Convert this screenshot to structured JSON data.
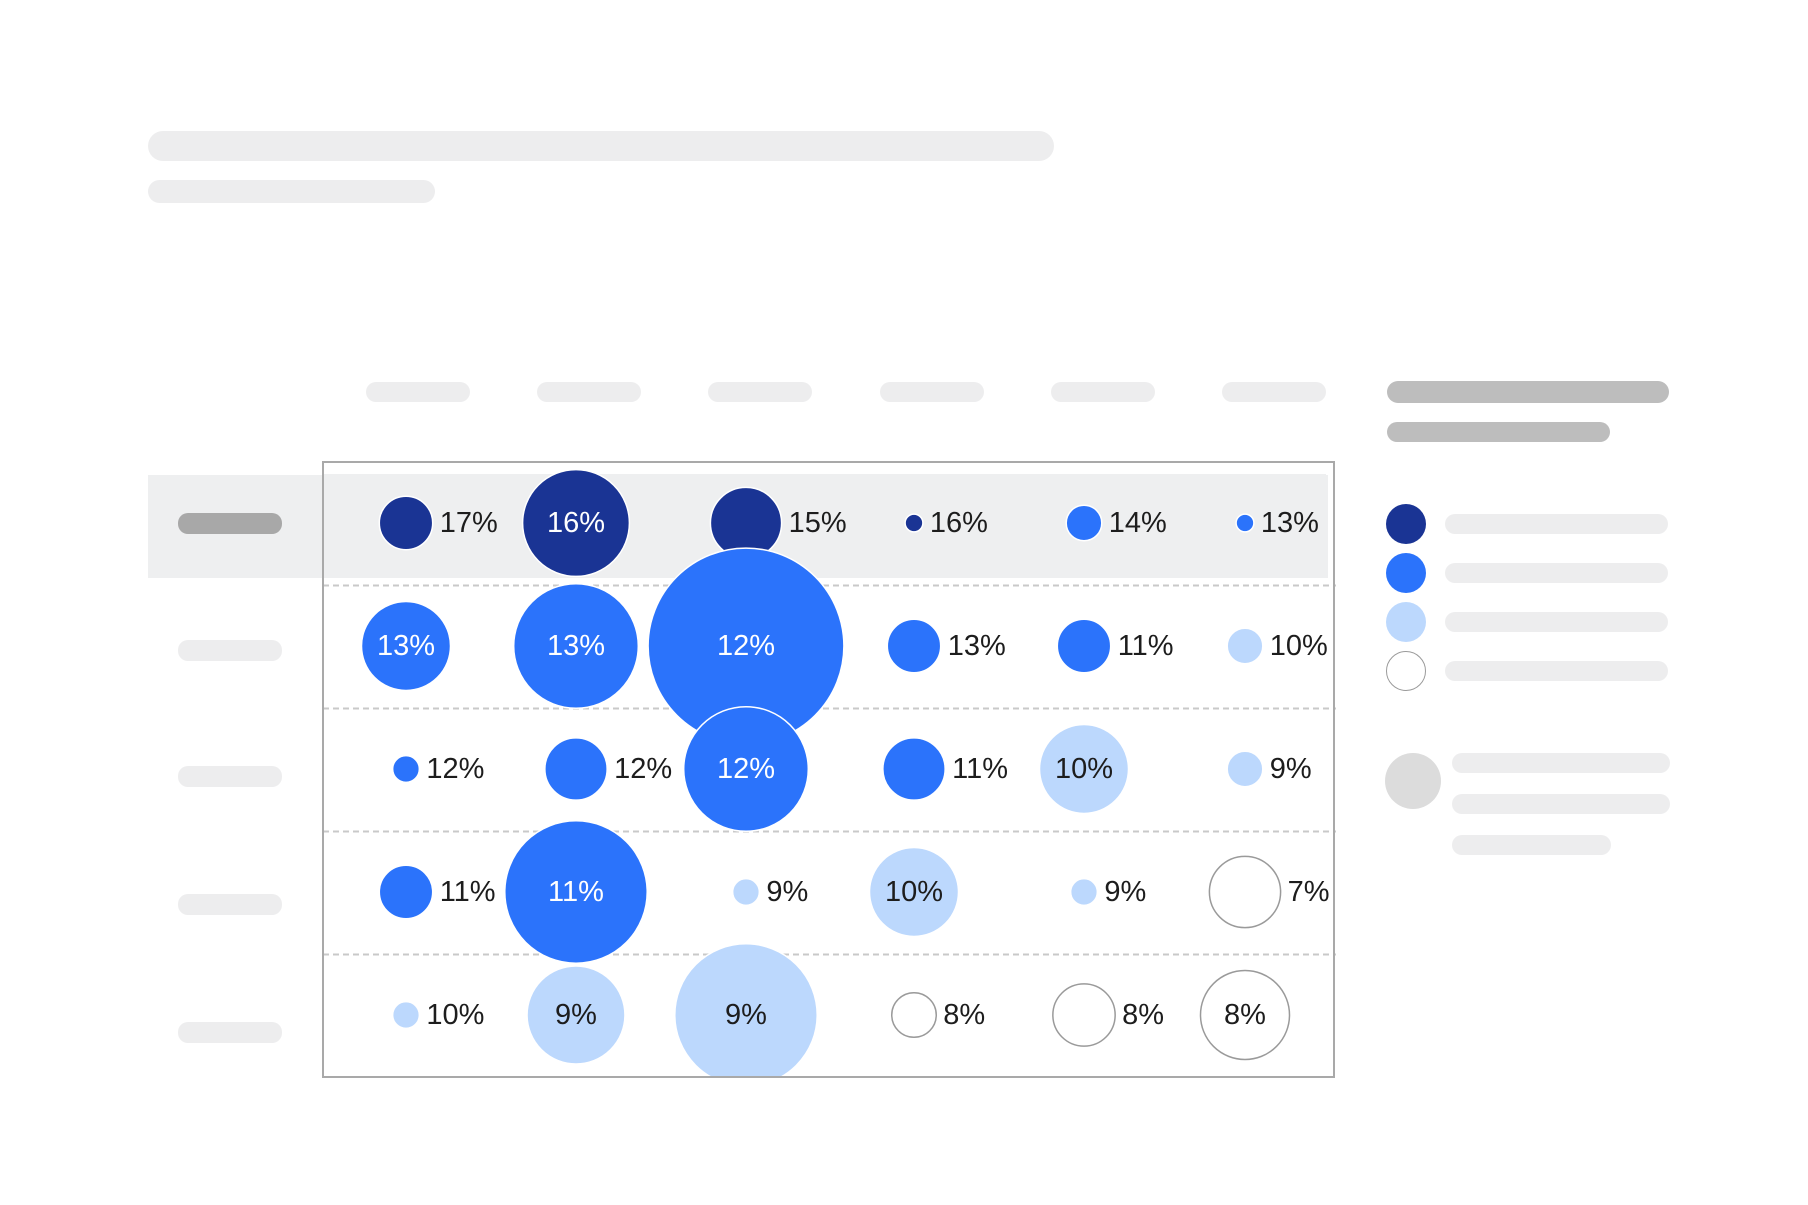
{
  "colors": {
    "dark": "#1a3494",
    "medium": "#2b73fb",
    "light": "#bcd8fd",
    "none": "#ffffff",
    "outline": "#9a9a9a",
    "highlight": "#eeeff0",
    "grid": "#c9c9c9",
    "text_dark": "#1d1d1d",
    "text_light": "#ffffff"
  },
  "chart_data": {
    "type": "bubble-matrix",
    "title": "",
    "xlabel": "",
    "ylabel": "",
    "rows": [
      [
        {
          "label": "17%",
          "size": 3,
          "tone": "dark"
        },
        {
          "label": "16%",
          "size": 6,
          "tone": "dark"
        },
        {
          "label": "15%",
          "size": 4,
          "tone": "dark"
        },
        {
          "label": "16%",
          "size": 1,
          "tone": "dark"
        },
        {
          "label": "14%",
          "size": 2,
          "tone": "medium"
        },
        {
          "label": "13%",
          "size": 1,
          "tone": "medium"
        }
      ],
      [
        {
          "label": "13%",
          "size": 5,
          "tone": "medium"
        },
        {
          "label": "13%",
          "size": 7,
          "tone": "medium"
        },
        {
          "label": "12%",
          "size": 11,
          "tone": "medium"
        },
        {
          "label": "13%",
          "size": 3,
          "tone": "medium"
        },
        {
          "label": "11%",
          "size": 3,
          "tone": "medium"
        },
        {
          "label": "10%",
          "size": 2,
          "tone": "light"
        }
      ],
      [
        {
          "label": "12%",
          "size": 1.5,
          "tone": "medium"
        },
        {
          "label": "12%",
          "size": 3.5,
          "tone": "medium"
        },
        {
          "label": "12%",
          "size": 7,
          "tone": "medium"
        },
        {
          "label": "11%",
          "size": 3.5,
          "tone": "medium"
        },
        {
          "label": "10%",
          "size": 5,
          "tone": "light"
        },
        {
          "label": "9%",
          "size": 2,
          "tone": "light"
        }
      ],
      [
        {
          "label": "11%",
          "size": 3,
          "tone": "medium"
        },
        {
          "label": "11%",
          "size": 8,
          "tone": "medium"
        },
        {
          "label": "9%",
          "size": 1.5,
          "tone": "light"
        },
        {
          "label": "10%",
          "size": 5,
          "tone": "light"
        },
        {
          "label": "9%",
          "size": 1.5,
          "tone": "light"
        },
        {
          "label": "7%",
          "size": 4,
          "tone": "none"
        }
      ],
      [
        {
          "label": "10%",
          "size": 1.5,
          "tone": "light"
        },
        {
          "label": "9%",
          "size": 5.5,
          "tone": "light"
        },
        {
          "label": "9%",
          "size": 8,
          "tone": "light"
        },
        {
          "label": "8%",
          "size": 2.5,
          "tone": "none"
        },
        {
          "label": "8%",
          "size": 3.5,
          "tone": "none"
        },
        {
          "label": "8%",
          "size": 5,
          "tone": "none"
        }
      ]
    ],
    "highlighted_row": 0,
    "legend": [
      "dark",
      "medium",
      "light",
      "none"
    ],
    "grid": true,
    "legend_position": "right"
  }
}
